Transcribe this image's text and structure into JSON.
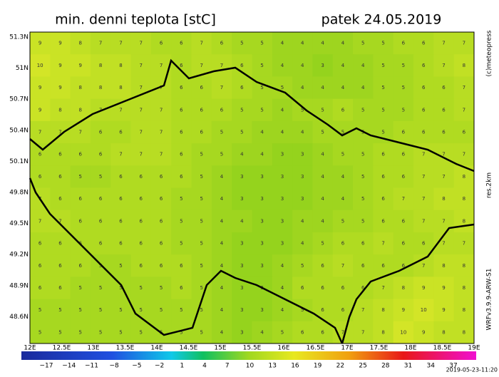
{
  "header": {
    "title": "min. denni teplota [stC]",
    "date": "patek 24.05.2019"
  },
  "map": {
    "lat_labels": [
      "51.3N",
      "51N",
      "50.7N",
      "50.4N",
      "50.1N",
      "49.8N",
      "49.5N",
      "49.2N",
      "48.9N",
      "48.6N"
    ],
    "lon_labels": [
      "12E",
      "12.5E",
      "13E",
      "13.5E",
      "14E",
      "14.5E",
      "15E",
      "15.5E",
      "16E",
      "16.5E",
      "17E",
      "17.5E",
      "18E",
      "18.5E",
      "19E"
    ],
    "grid": [
      [
        9,
        9,
        8,
        7,
        7,
        7,
        6,
        6,
        7,
        6,
        5,
        5,
        4,
        4,
        4,
        4,
        5,
        5,
        6,
        6,
        7,
        7
      ],
      [
        10,
        9,
        9,
        8,
        8,
        7,
        7,
        6,
        7,
        7,
        6,
        5,
        4,
        4,
        3,
        4,
        4,
        5,
        5,
        6,
        7,
        8
      ],
      [
        9,
        9,
        8,
        8,
        8,
        7,
        7,
        6,
        6,
        7,
        6,
        5,
        5,
        4,
        4,
        4,
        4,
        5,
        5,
        6,
        6,
        7
      ],
      [
        9,
        8,
        8,
        7,
        7,
        7,
        7,
        6,
        6,
        6,
        5,
        5,
        4,
        5,
        5,
        6,
        5,
        5,
        5,
        6,
        6,
        7
      ],
      [
        7,
        7,
        7,
        6,
        6,
        7,
        7,
        6,
        6,
        5,
        5,
        4,
        4,
        4,
        5,
        5,
        5,
        5,
        6,
        6,
        6,
        6
      ],
      [
        6,
        6,
        6,
        6,
        7,
        7,
        7,
        6,
        5,
        5,
        4,
        4,
        3,
        3,
        4,
        5,
        5,
        6,
        6,
        7,
        7,
        7
      ],
      [
        6,
        6,
        5,
        5,
        6,
        6,
        6,
        6,
        5,
        4,
        3,
        3,
        3,
        3,
        4,
        4,
        5,
        6,
        6,
        7,
        7,
        8
      ],
      [
        7,
        6,
        6,
        6,
        6,
        6,
        6,
        5,
        5,
        4,
        3,
        3,
        3,
        3,
        4,
        4,
        5,
        6,
        7,
        7,
        8,
        8
      ],
      [
        7,
        7,
        6,
        6,
        6,
        6,
        6,
        5,
        5,
        4,
        4,
        3,
        3,
        4,
        4,
        5,
        5,
        6,
        6,
        7,
        7,
        8
      ],
      [
        6,
        6,
        6,
        6,
        6,
        6,
        6,
        5,
        5,
        4,
        3,
        3,
        3,
        4,
        5,
        6,
        6,
        7,
        6,
        6,
        7,
        7
      ],
      [
        6,
        6,
        6,
        5,
        5,
        6,
        6,
        6,
        5,
        4,
        3,
        3,
        4,
        5,
        6,
        7,
        6,
        6,
        6,
        7,
        8,
        8
      ],
      [
        6,
        6,
        5,
        5,
        5,
        5,
        5,
        6,
        5,
        4,
        3,
        3,
        4,
        6,
        6,
        6,
        6,
        7,
        8,
        9,
        9,
        8
      ],
      [
        5,
        5,
        5,
        5,
        5,
        5,
        5,
        5,
        5,
        4,
        3,
        3,
        4,
        5,
        6,
        6,
        7,
        8,
        9,
        10,
        9,
        8
      ],
      [
        5,
        5,
        5,
        5,
        5,
        5,
        5,
        5,
        5,
        4,
        3,
        4,
        5,
        6,
        6,
        7,
        7,
        8,
        10,
        9,
        8,
        8
      ]
    ]
  },
  "colorbar": {
    "labels": [
      "−17",
      "−14",
      "−11",
      "−8",
      "−5",
      "−2",
      "1",
      "4",
      "7",
      "10",
      "13",
      "16",
      "19",
      "22",
      "25",
      "28",
      "31",
      "34",
      "37"
    ]
  },
  "side": {
    "copyright": "(c)meteopress",
    "resolution": "res.2km",
    "model": "WRFv3.9.9-ARW-S1",
    "run": "2019-05-23-11:20"
  }
}
